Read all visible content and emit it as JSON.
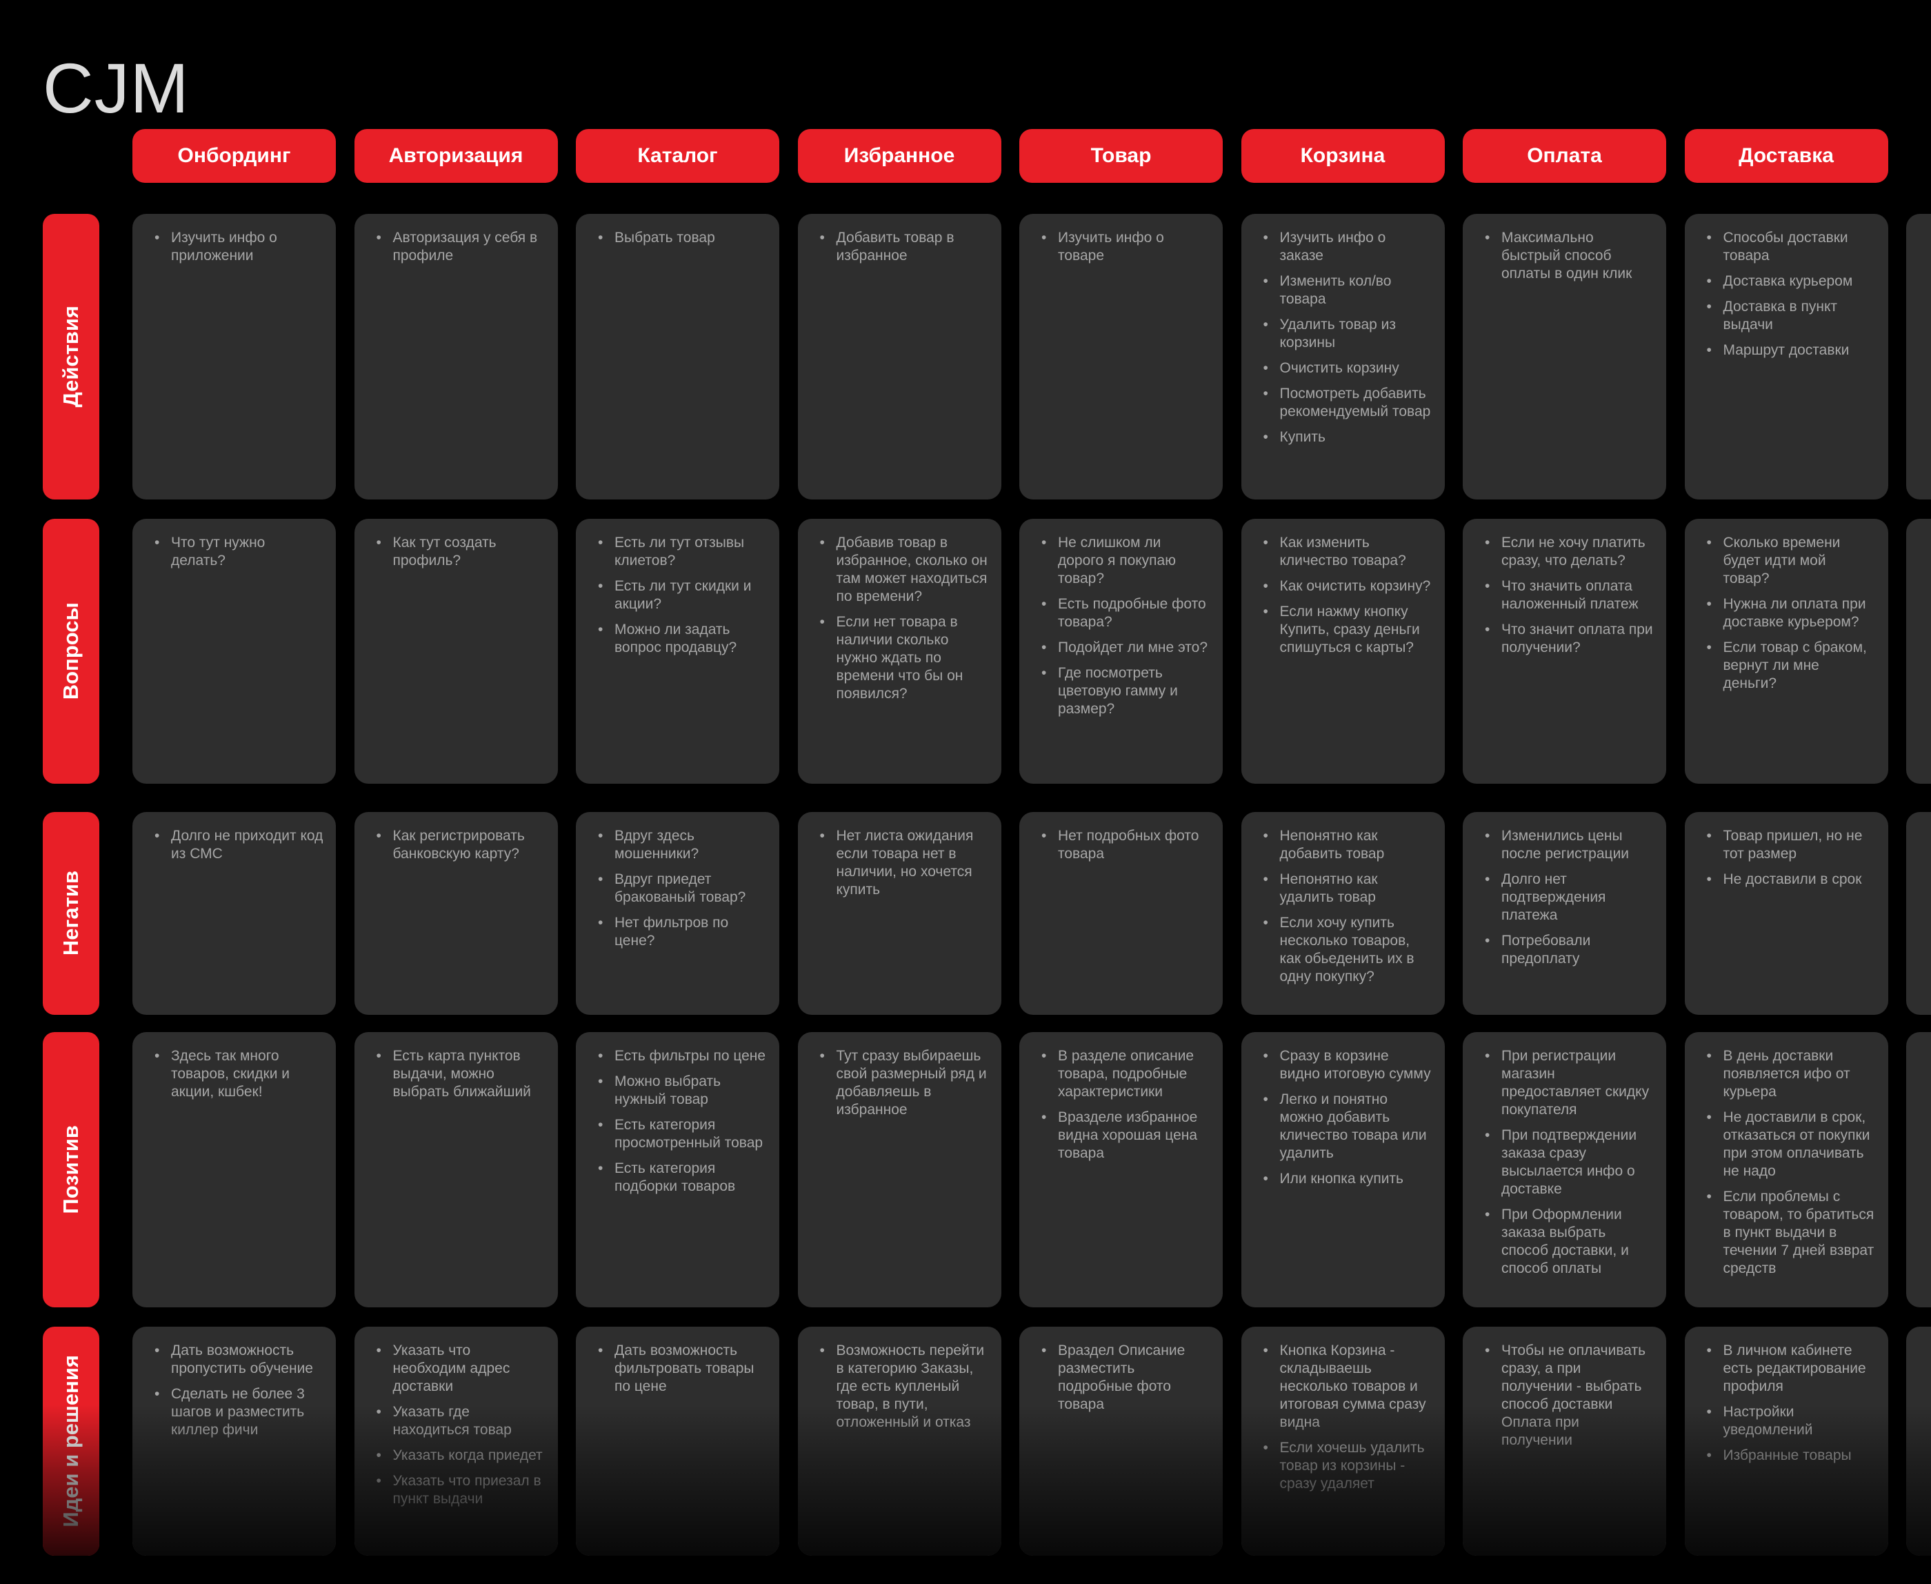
{
  "title": "CJM",
  "colors": {
    "accent_red": "#e81f27",
    "card_background": "#2e2e2e",
    "card_text": "#a6a6a6",
    "header_text": "#ffffff",
    "title_text": "#dcdcdc",
    "page_background": "#000000"
  },
  "columns": [
    "Онбординг",
    "Авторизация",
    "Каталог",
    "Избранное",
    "Товар",
    "Корзина",
    "Оплата",
    "Доставка"
  ],
  "rows": [
    {
      "label": "Действия",
      "cells": [
        [
          "Изучить инфо о приложении"
        ],
        [
          "Авторизация у себя в профиле"
        ],
        [
          "Выбрать товар"
        ],
        [
          "Добавить товар в избранное"
        ],
        [
          "Изучить инфо о товаре"
        ],
        [
          "Изучить инфо о заказе",
          "Изменить кол/во товара",
          "Удалить товар из корзины",
          "Очистить корзину",
          "Посмотреть добавить рекомендуемый товар",
          "Купить"
        ],
        [
          "Максимально быстрый способ оплаты в один клик"
        ],
        [
          "Способы доставки товара",
          "Доставка курьером",
          "Доставка в пункт выдачи",
          "Маршрут доставки"
        ]
      ]
    },
    {
      "label": "Вопросы",
      "cells": [
        [
          "Что тут нужно делать?"
        ],
        [
          "Как тут создать профиль?"
        ],
        [
          "Есть ли тут отзывы клиетов?",
          "Есть ли тут скидки и акции?",
          "Можно ли задать вопрос продавцу?"
        ],
        [
          "Добавив товар в избранное, сколько он там может находиться по времени?",
          "Если нет товара в наличии сколько нужно ждать по времени что бы он появился?"
        ],
        [
          "Не слишком ли дорого я покупаю товар?",
          "Есть  подробные фото товара?",
          "Подойдет ли мне это?",
          "Где посмотреть цветовую гамму и размер?"
        ],
        [
          "Как изменить кличество товара?",
          "Как очистить корзину?",
          "Если нажму кнопку Купить, сразу деньги спишуться с карты?"
        ],
        [
          "Если не хочу платить сразу, что делать?",
          "Что значить оплата наложенный платеж",
          "Что значит оплата при получении?"
        ],
        [
          "Сколько времени будет идти мой товар?",
          "Нужна ли оплата при доставке курьером?",
          "Если товар с браком, вернут ли мне деньги?"
        ]
      ]
    },
    {
      "label": "Негатив",
      "cells": [
        [
          "Долго  не приходит код из СМС"
        ],
        [
          "Как регистрировать банковскую карту?"
        ],
        [
          "Вдруг здесь мошенники?",
          "Вдруг приедет бракованый товар?",
          "Нет фильтров по цене?"
        ],
        [
          "Нет листа ожидания если товара нет в наличии, но хочется купить"
        ],
        [
          "Нет подробных фото товара"
        ],
        [
          "Непонятно как добавить товар",
          "Непонятно как удалить товар",
          "Если хочу купить несколько товаров, как обьеденить их в одну покупку?"
        ],
        [
          "Изменились цены после регистрации",
          "Долго нет подтверждения платежа",
          "Потребовали предоплату"
        ],
        [
          "Товар пришел, но не тот размер",
          "Не доставили в срок"
        ]
      ]
    },
    {
      "label": "Позитив",
      "cells": [
        [
          "Здесь так много товаров, скидки и акции, кшбек!"
        ],
        [
          "Есть карта пунктов выдачи, можно выбрать ближайший"
        ],
        [
          "Есть фильтры по цене",
          "Можно выбрать нужный товар",
          "Есть категория просмотренный товар",
          "Есть категория подборки товаров"
        ],
        [
          "Тут сразу выбираешь свой размерный ряд и добавляешь в избранное"
        ],
        [
          "В разделе описание товара, подробные характеристики",
          "Вразделе избранное видна хорошая цена товара"
        ],
        [
          "Сразу в корзине видно итоговую сумму",
          "Легко и понятно можно добавить кличество товара или удалить",
          "Или кнопка купить"
        ],
        [
          "При регистрации магазин предоставляет скидку покупателя",
          "При подтверждении заказа сразу высылается инфо о доставке",
          "При Оформлении заказа выбрать способ доставки, и способ оплаты"
        ],
        [
          "В день доставки появляется ифо от курьера",
          "Не доставили в срок, отказаться от покупки при этом оплачивать не надо",
          "Если проблемы с товаром, то братиться в пункт выдачи в течении 7 дней взврат средств"
        ]
      ]
    },
    {
      "label": "Идеи и решения",
      "cells": [
        [
          "Дать возможность пропустить обучение",
          "Сделать не более 3 шагов и разместить киллер фичи"
        ],
        [
          "Указать что необходим адрес доставки",
          "Указать где находиться товар",
          "Указать когда приедет",
          "Указать что приезал в пункт выдачи"
        ],
        [
          "Дать возможность фильтровать товары по цене"
        ],
        [
          "Возможность перейти в категорию Заказы, где есть купленый товар, в пути, отложенный и отказ"
        ],
        [
          "Враздел Описание разместить подробные фото товара"
        ],
        [
          "Кнопка Корзина - складываешь несколько товаров и итоговая сумма сразу видна",
          "Если хочешь удалить товар из корзины - сразу удаляет"
        ],
        [
          "Чтобы не оплачивать сразу, а при получении - выбрать способ доставки Оплата при получении"
        ],
        [
          "В личном кабинете есть редактирование профиля",
          "Настройки уведомлений",
          "Избранные товары"
        ]
      ]
    }
  ]
}
